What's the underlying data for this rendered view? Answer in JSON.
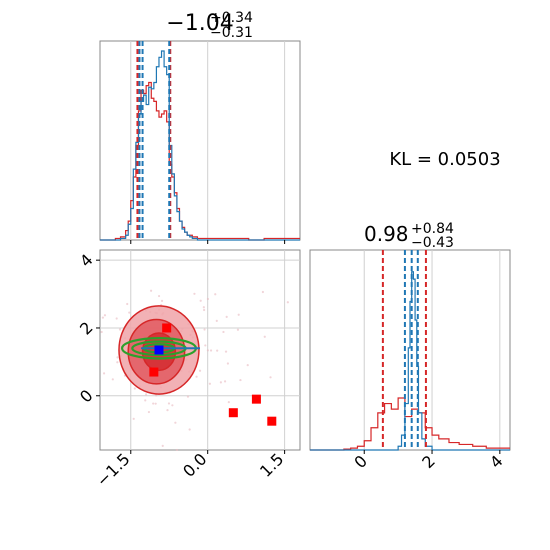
{
  "colors": {
    "red": "#d62728",
    "blue": "#1f77b4",
    "green": "#2ca02c",
    "marker_red": "#ff0000",
    "marker_blue": "#0000ff",
    "grid": "#d0d0d0",
    "frame": "#888888"
  },
  "chart_data": [
    {
      "type": "line",
      "title": "",
      "panel": "marginal histogram of parameter 1",
      "title_main": "−1.04",
      "title_sup": "+0.34",
      "title_sub": "−0.31",
      "xlim": [
        -2.1,
        1.8
      ],
      "grid": true,
      "series": [
        {
          "color": "red",
          "x": [
            -2.1,
            -1.9,
            -1.8,
            -1.7,
            -1.6,
            -1.55,
            -1.5,
            -1.45,
            -1.4,
            -1.35,
            -1.3,
            -1.25,
            -1.2,
            -1.15,
            -1.1,
            -1.05,
            -1.0,
            -0.95,
            -0.9,
            -0.85,
            -0.8,
            -0.75,
            -0.7,
            -0.65,
            -0.6,
            -0.55,
            -0.5,
            -0.45,
            -0.4,
            -0.3,
            -0.2,
            0.2,
            0.5,
            0.8,
            1.1,
            1.4,
            1.8
          ],
          "y": [
            0,
            0,
            0.01,
            0.02,
            0.06,
            0.12,
            0.25,
            0.4,
            0.6,
            0.82,
            0.95,
            0.93,
            0.98,
            1.0,
            0.9,
            0.88,
            0.82,
            0.78,
            0.8,
            0.82,
            0.75,
            0.48,
            0.4,
            0.3,
            0.2,
            0.12,
            0.08,
            0.05,
            0.03,
            0.02,
            0.01,
            0.01,
            0.01,
            0.0,
            0.01,
            0.01,
            0.0
          ]
        },
        {
          "color": "blue",
          "x": [
            -2.1,
            -1.7,
            -1.6,
            -1.55,
            -1.5,
            -1.45,
            -1.4,
            -1.35,
            -1.3,
            -1.25,
            -1.2,
            -1.15,
            -1.1,
            -1.05,
            -1.0,
            -0.95,
            -0.9,
            -0.85,
            -0.8,
            -0.75,
            -0.7,
            -0.65,
            -0.6,
            -0.55,
            -0.5,
            -0.45,
            -0.4,
            -0.35,
            -0.3,
            -0.2,
            1.8
          ],
          "y": [
            0,
            0.01,
            0.03,
            0.1,
            0.2,
            0.45,
            0.62,
            0.8,
            0.88,
            0.92,
            0.86,
            0.97,
            0.96,
            1.0,
            1.1,
            1.16,
            1.2,
            1.1,
            1.05,
            0.6,
            0.42,
            0.28,
            0.18,
            0.12,
            0.07,
            0.05,
            0.03,
            0.02,
            0.01,
            0.0,
            0.0
          ]
        }
      ],
      "quantile_lines": {
        "red": [
          -1.37,
          -0.73
        ],
        "blue": [
          -1.33,
          -1.27,
          -0.75
        ]
      }
    },
    {
      "type": "scatter",
      "title": "",
      "panel": "joint distribution of parameters 1 and 2",
      "xlim": [
        -2.1,
        1.8
      ],
      "ylim": [
        -1.6,
        4.3
      ],
      "xticks": [
        "−1.5",
        "0.0",
        "1.5"
      ],
      "xtick_values": [
        -1.5,
        0.0,
        1.5
      ],
      "yticks": [
        "0",
        "2",
        "4"
      ],
      "ytick_values": [
        0,
        2,
        4
      ],
      "grid": true,
      "red_points": [
        {
          "x": -1.05,
          "y": 0.7
        },
        {
          "x": -0.8,
          "y": 2.0
        },
        {
          "x": 0.5,
          "y": -0.5
        },
        {
          "x": 0.95,
          "y": -0.1
        },
        {
          "x": 1.25,
          "y": -0.75
        }
      ],
      "blue_points": [
        {
          "x": -0.95,
          "y": 1.35
        }
      ],
      "red_contours": [
        {
          "cx": -0.95,
          "cy": 1.35,
          "rx": 0.78,
          "ry": 1.3
        },
        {
          "cx": -1.0,
          "cy": 1.3,
          "rx": 0.55,
          "ry": 0.95
        },
        {
          "cx": -0.95,
          "cy": 1.3,
          "rx": 0.32,
          "ry": 0.55
        }
      ],
      "green_contours": [
        {
          "cx": -0.95,
          "cy": 1.4,
          "rx": 0.72,
          "ry": 0.3
        },
        {
          "cx": -0.95,
          "cy": 1.4,
          "rx": 0.52,
          "ry": 0.2
        },
        {
          "cx": -0.95,
          "cy": 1.4,
          "rx": 0.3,
          "ry": 0.12
        }
      ]
    },
    {
      "type": "line",
      "title": "",
      "panel": "marginal histogram of parameter 2",
      "title_main": "0.98",
      "title_sup": "+0.84",
      "title_sub": "−0.43",
      "xlim": [
        -1.6,
        4.3
      ],
      "xticks": [
        "0",
        "2",
        "4"
      ],
      "xtick_values": [
        0,
        2,
        4
      ],
      "grid": true,
      "series": [
        {
          "color": "red",
          "x": [
            -1.6,
            -0.6,
            -0.4,
            -0.2,
            0.0,
            0.2,
            0.4,
            0.6,
            0.8,
            1.0,
            1.2,
            1.4,
            1.6,
            1.8,
            2.0,
            2.2,
            2.5,
            2.8,
            3.2,
            3.6,
            4.3
          ],
          "y": [
            0,
            0.005,
            0.01,
            0.02,
            0.05,
            0.12,
            0.2,
            0.25,
            0.22,
            0.28,
            0.18,
            0.22,
            0.2,
            0.12,
            0.08,
            0.06,
            0.04,
            0.03,
            0.02,
            0.01,
            0.0
          ]
        },
        {
          "color": "blue",
          "x": [
            -1.6,
            0.8,
            1.0,
            1.1,
            1.2,
            1.3,
            1.35,
            1.4,
            1.45,
            1.5,
            1.55,
            1.6,
            1.7,
            1.8,
            2.0,
            4.3
          ],
          "y": [
            0,
            0.0,
            0.02,
            0.08,
            0.25,
            0.55,
            0.8,
            0.96,
            0.92,
            0.7,
            0.45,
            0.2,
            0.06,
            0.02,
            0.0,
            0.0
          ]
        }
      ],
      "quantile_lines": {
        "red": [
          0.55,
          1.82
        ],
        "blue": [
          1.2,
          1.58
        ]
      }
    }
  ],
  "kl_label": "KL = 0.0503"
}
